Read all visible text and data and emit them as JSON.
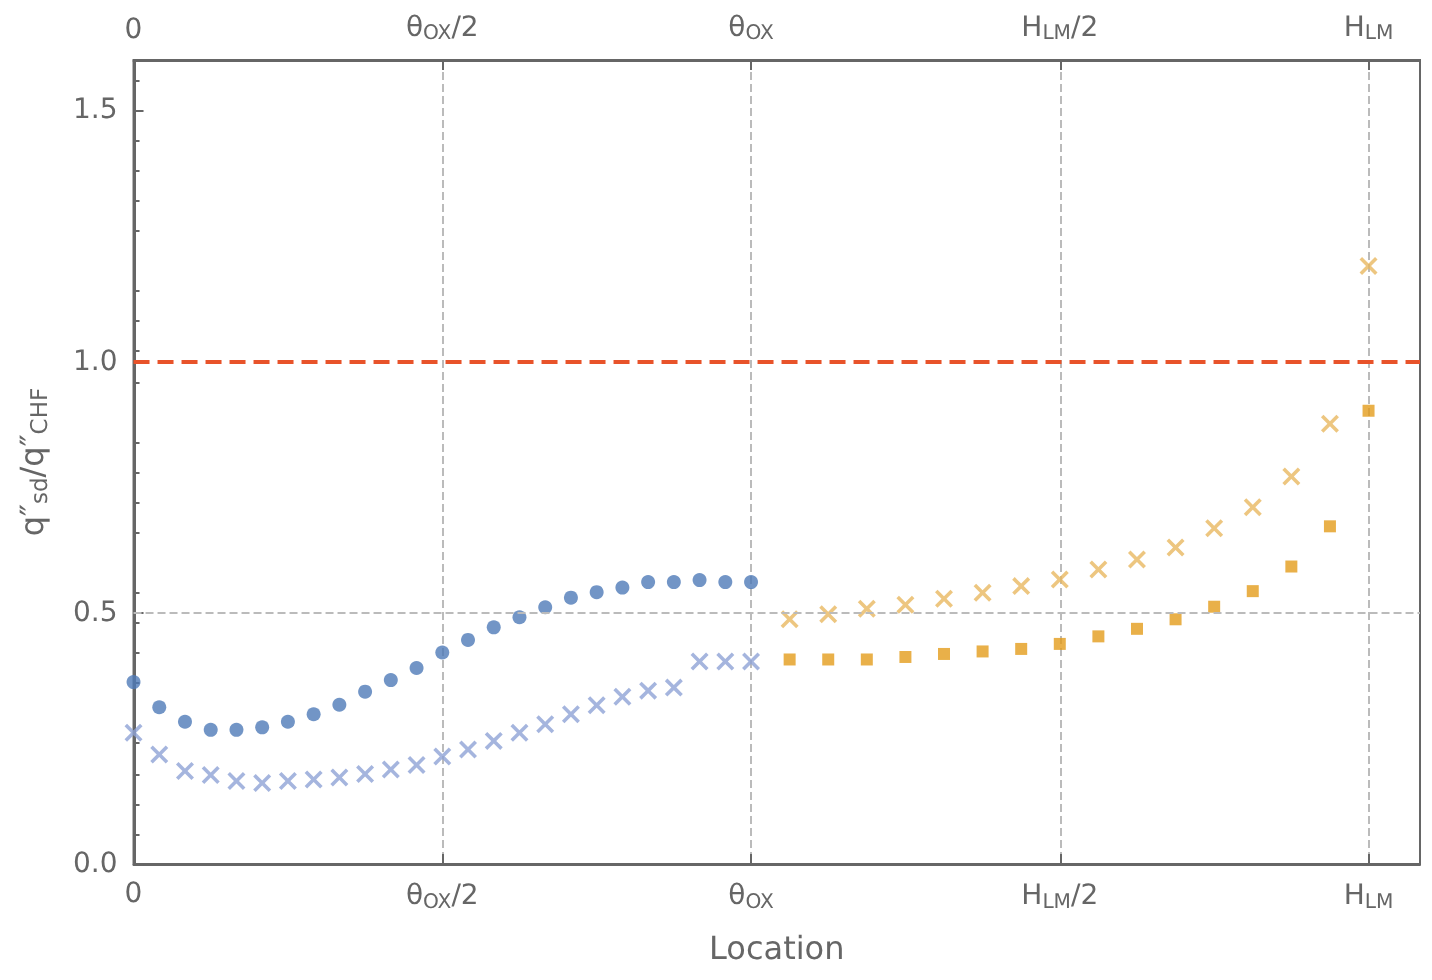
{
  "chart_data": {
    "type": "scatter",
    "xlabel": "Location",
    "ylabel": "q″$_{sd}$/q″$_{CHF}$",
    "categories": [
      "0",
      null,
      null,
      null,
      null,
      null,
      null,
      null,
      null,
      null,
      null,
      null,
      null,
      null,
      null,
      null,
      null,
      null,
      null,
      null,
      null,
      null,
      null,
      null,
      "θ$_{OX}$/2",
      null,
      null,
      null,
      null,
      null,
      null,
      null,
      null,
      null,
      null,
      null,
      null,
      null,
      null,
      null,
      null,
      null,
      null,
      null,
      null,
      null,
      null,
      null,
      "θ$_{OX}$",
      null,
      null,
      null,
      null,
      null,
      null,
      null,
      null,
      null,
      null,
      null,
      null,
      null,
      null,
      null,
      null,
      null,
      null,
      null,
      null,
      null,
      null,
      null,
      "H$_{LM}$/2",
      null,
      null,
      null,
      null,
      null,
      null,
      null,
      null,
      null,
      null,
      null,
      null,
      null,
      null,
      null,
      null,
      null,
      null,
      null,
      null,
      null,
      null,
      null,
      "H$_{LM}$",
      null,
      null,
      null,
      null
    ],
    "ylim": [
      0,
      1.6
    ],
    "yticks": [
      {
        "value": 0,
        "label": "0.0"
      },
      0.5,
      {
        "value": 1,
        "label": "1.0"
      },
      1.5
    ],
    "grid": "x",
    "ref_lines": [
      {
        "axis": "y",
        "value": 0.5,
        "label": null,
        "color": "#bbbbbb",
        "line_style": "dashed"
      },
      {
        "axis": "y",
        "value": 1,
        "label": null,
        "color": "#e8532a",
        "line_style": "dashed"
      }
    ],
    "series": [
      {
        "color": "#4f7ab8",
        "marker": "circle",
        "values": [
          0.362,
          null,
          0.312,
          null,
          0.283,
          null,
          0.267,
          null,
          0.267,
          null,
          0.272,
          null,
          0.283,
          null,
          0.298,
          null,
          0.317,
          null,
          0.343,
          null,
          0.366,
          null,
          0.39,
          null,
          0.421,
          null,
          0.446,
          null,
          0.471,
          null,
          0.491,
          null,
          0.511,
          null,
          0.53,
          null,
          0.541,
          null,
          0.55,
          null,
          0.561,
          null,
          0.561,
          null,
          0.565,
          null,
          0.561,
          null,
          0.561,
          null,
          null,
          null,
          null,
          null,
          null,
          null,
          null,
          null,
          null,
          null,
          null,
          null,
          null,
          null,
          null,
          null,
          null,
          null,
          null,
          null,
          null,
          null,
          null,
          null,
          null,
          null,
          null,
          null,
          null,
          null,
          null,
          null,
          null,
          null,
          null,
          null,
          null,
          null,
          null,
          null,
          null,
          null,
          null,
          null,
          null,
          null,
          null,
          null,
          null,
          null,
          null
        ]
      },
      {
        "color": "#8fa3d6",
        "marker": "cross",
        "values": [
          0.261,
          null,
          0.218,
          null,
          0.185,
          null,
          0.177,
          null,
          0.165,
          null,
          0.161,
          null,
          0.165,
          null,
          0.168,
          null,
          0.172,
          null,
          0.179,
          null,
          0.188,
          null,
          0.197,
          null,
          0.214,
          null,
          0.228,
          null,
          0.245,
          null,
          0.261,
          null,
          0.278,
          null,
          0.298,
          null,
          0.316,
          null,
          0.333,
          null,
          0.345,
          null,
          0.351,
          null,
          0.403,
          null,
          0.403,
          null,
          0.403,
          null,
          null,
          null,
          null,
          null,
          null,
          null,
          null,
          null,
          null,
          null,
          null,
          null,
          null,
          null,
          null,
          null,
          null,
          null,
          null,
          null,
          null,
          null,
          null,
          null,
          null,
          null,
          null,
          null,
          null,
          null,
          null,
          null,
          null,
          null,
          null,
          null,
          null,
          null,
          null,
          null,
          null,
          null,
          null,
          null,
          null,
          null,
          null,
          null,
          null,
          null,
          null
        ]
      },
      {
        "color": "#e39c1c",
        "marker": "square",
        "values": [
          null,
          null,
          null,
          null,
          null,
          null,
          null,
          null,
          null,
          null,
          null,
          null,
          null,
          null,
          null,
          null,
          null,
          null,
          null,
          null,
          null,
          null,
          null,
          null,
          null,
          null,
          null,
          null,
          null,
          null,
          null,
          null,
          null,
          null,
          null,
          null,
          null,
          null,
          null,
          null,
          null,
          null,
          null,
          null,
          null,
          null,
          null,
          null,
          null,
          null,
          null,
          0.407,
          null,
          null,
          0.407,
          null,
          null,
          0.407,
          null,
          null,
          0.412,
          null,
          null,
          0.418,
          null,
          null,
          0.423,
          null,
          null,
          0.428,
          null,
          null,
          0.438,
          null,
          null,
          0.453,
          null,
          null,
          0.468,
          null,
          null,
          0.487,
          null,
          null,
          0.512,
          null,
          null,
          0.543,
          null,
          null,
          0.592,
          null,
          null,
          0.672,
          null,
          null,
          0.902,
          null,
          null,
          null,
          null
        ]
      },
      {
        "color": "#e8b860",
        "marker": "cross",
        "values": [
          null,
          null,
          null,
          null,
          null,
          null,
          null,
          null,
          null,
          null,
          null,
          null,
          null,
          null,
          null,
          null,
          null,
          null,
          null,
          null,
          null,
          null,
          null,
          null,
          null,
          null,
          null,
          null,
          null,
          null,
          null,
          null,
          null,
          null,
          null,
          null,
          null,
          null,
          null,
          null,
          null,
          null,
          null,
          null,
          null,
          null,
          null,
          null,
          null,
          null,
          null,
          0.487,
          null,
          null,
          0.497,
          null,
          null,
          0.508,
          null,
          null,
          0.516,
          null,
          null,
          0.528,
          null,
          null,
          0.54,
          null,
          null,
          0.553,
          null,
          null,
          0.566,
          null,
          null,
          0.586,
          null,
          null,
          0.606,
          null,
          null,
          0.63,
          null,
          null,
          0.668,
          null,
          null,
          0.71,
          null,
          null,
          0.771,
          null,
          null,
          0.876,
          null,
          null,
          1.19,
          null,
          null,
          null,
          null
        ]
      }
    ]
  }
}
